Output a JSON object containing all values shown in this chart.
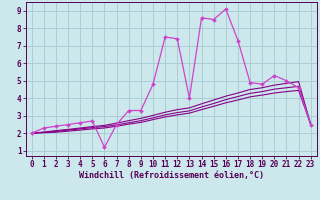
{
  "xlabel": "Windchill (Refroidissement éolien,°C)",
  "bg_color": "#cce8ec",
  "grid_color": "#aacdd4",
  "line_color_dark": "#880088",
  "line_color_main": "#cc44cc",
  "x_data": [
    0,
    1,
    2,
    3,
    4,
    5,
    6,
    7,
    8,
    9,
    10,
    11,
    12,
    13,
    14,
    15,
    16,
    17,
    18,
    19,
    20,
    21,
    22,
    23
  ],
  "y_main": [
    2.0,
    2.3,
    2.4,
    2.5,
    2.6,
    2.7,
    1.2,
    2.5,
    3.3,
    3.3,
    4.8,
    7.5,
    7.4,
    4.0,
    8.6,
    8.5,
    9.1,
    7.3,
    4.9,
    4.8,
    5.3,
    5.0,
    4.6,
    2.5
  ],
  "y_line1": [
    2.0,
    2.05,
    2.1,
    2.18,
    2.25,
    2.32,
    2.38,
    2.48,
    2.6,
    2.72,
    2.88,
    3.05,
    3.18,
    3.28,
    3.5,
    3.7,
    3.92,
    4.1,
    4.28,
    4.38,
    4.52,
    4.6,
    4.68,
    2.5
  ],
  "y_line2": [
    2.0,
    2.07,
    2.15,
    2.22,
    2.3,
    2.38,
    2.45,
    2.58,
    2.72,
    2.85,
    3.02,
    3.2,
    3.35,
    3.45,
    3.68,
    3.9,
    4.12,
    4.3,
    4.5,
    4.6,
    4.75,
    4.85,
    4.95,
    2.5
  ],
  "y_line3": [
    2.0,
    2.03,
    2.06,
    2.12,
    2.18,
    2.25,
    2.3,
    2.4,
    2.52,
    2.62,
    2.78,
    2.93,
    3.05,
    3.15,
    3.35,
    3.54,
    3.74,
    3.9,
    4.08,
    4.18,
    4.3,
    4.38,
    4.45,
    2.5
  ],
  "xlim": [
    -0.5,
    23.5
  ],
  "ylim": [
    0.7,
    9.5
  ],
  "yticks": [
    1,
    2,
    3,
    4,
    5,
    6,
    7,
    8,
    9
  ],
  "xticks": [
    0,
    1,
    2,
    3,
    4,
    5,
    6,
    7,
    8,
    9,
    10,
    11,
    12,
    13,
    14,
    15,
    16,
    17,
    18,
    19,
    20,
    21,
    22,
    23
  ],
  "tick_color": "#550055",
  "label_fontsize": 5.5,
  "xlabel_fontsize": 6.0
}
